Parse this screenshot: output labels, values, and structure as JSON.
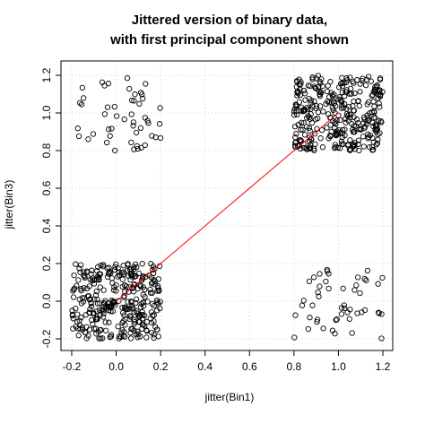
{
  "chart_data": {
    "type": "scatter",
    "title_line1": "Jittered version of binary data,",
    "title_line2": "with first principal component shown",
    "xlabel": "jitter(Bin1)",
    "ylabel": "jitter(Bin3)",
    "xlim": [
      -0.25,
      1.25
    ],
    "ylim": [
      -0.22,
      1.24
    ],
    "xticks": [
      -0.2,
      0.0,
      0.2,
      0.4,
      0.6,
      0.8,
      1.0,
      1.2
    ],
    "xtick_labels": [
      "-0.2",
      "0.0",
      "0.2",
      "0.4",
      "0.6",
      "0.8",
      "1.0",
      "1.2"
    ],
    "yticks": [
      -0.2,
      0.0,
      0.2,
      0.4,
      0.6,
      0.8,
      1.0,
      1.2
    ],
    "ytick_labels": [
      "-0.2",
      "0.0",
      "0.2",
      "0.4",
      "0.6",
      "0.8",
      "1.0",
      "1.2"
    ],
    "grid": true,
    "marker": "open-circle",
    "point_color": "#000000",
    "line_color": "#ff0000",
    "clusters": [
      {
        "center": [
          0,
          0
        ],
        "count": 330
      },
      {
        "center": [
          1,
          1
        ],
        "count": 330
      },
      {
        "center": [
          0,
          1
        ],
        "count": 50
      },
      {
        "center": [
          1,
          0
        ],
        "count": 50
      }
    ],
    "principal_component": {
      "x": [
        0.0,
        1.0
      ],
      "y": [
        0.0,
        1.0
      ]
    }
  }
}
